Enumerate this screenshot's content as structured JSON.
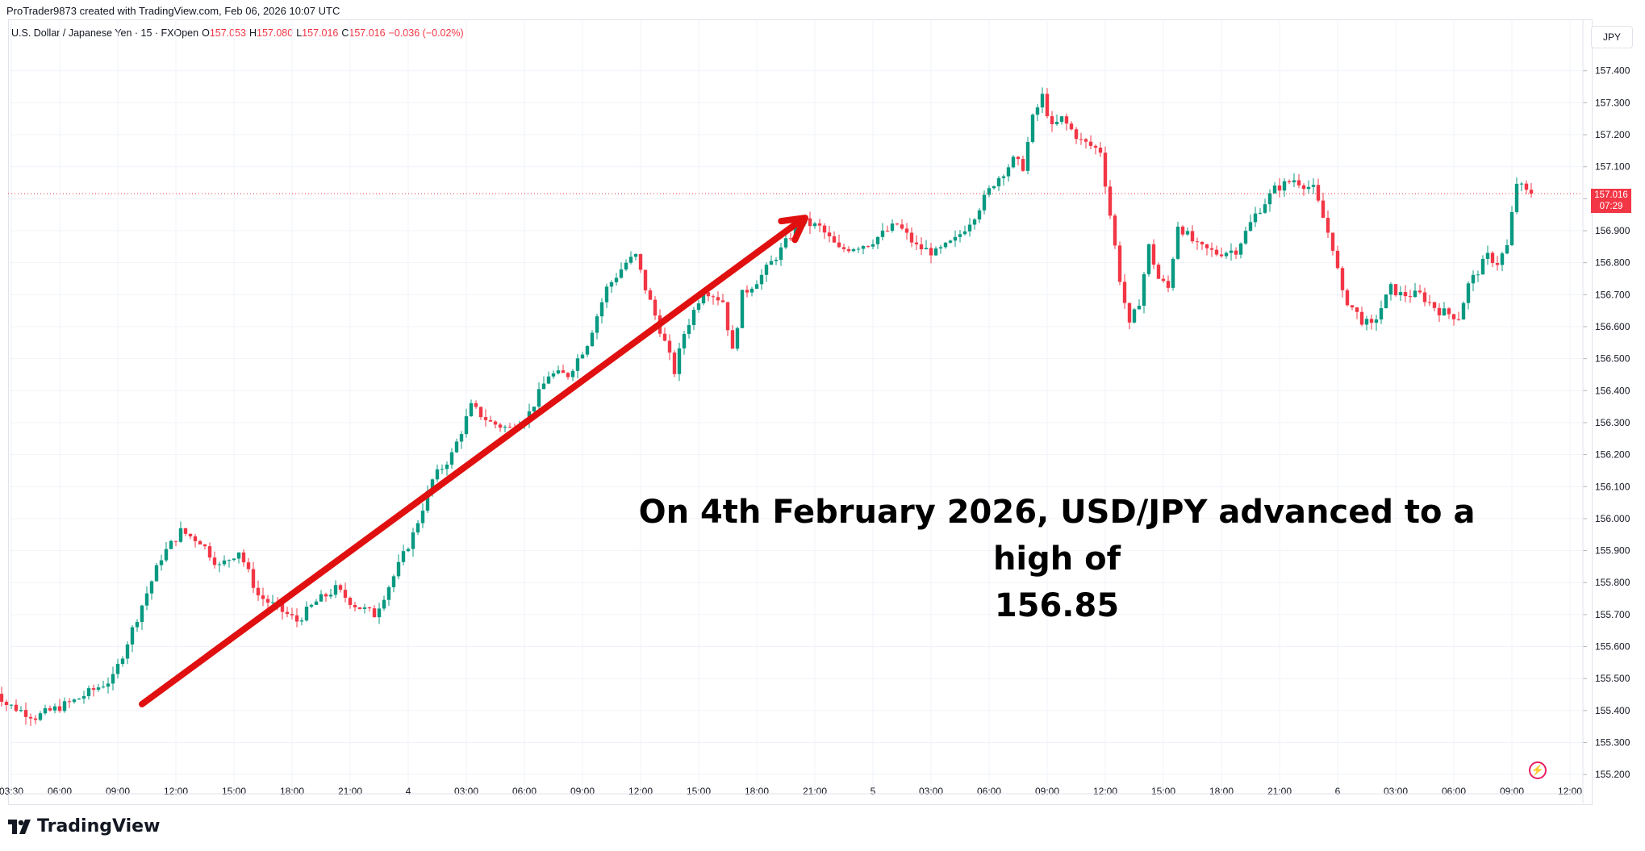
{
  "header": {
    "created_line": "ProTrader9873 created with TradingView.com, Feb 06, 2026 10:07 UTC"
  },
  "symbol_bar": {
    "title": "U.S. Dollar / Japanese Yen · 15 · FXOpen",
    "o_label": "O",
    "o_value": "157.053",
    "h_label": "H",
    "h_value": "157.080",
    "l_label": "L",
    "l_value": "157.016",
    "c_label": "C",
    "c_value": "157.016",
    "change": "−0.036 (−0.02%)"
  },
  "price_axis": {
    "currency": "JPY",
    "last_price": "157.016",
    "countdown": "07:29"
  },
  "annotation": {
    "line1": "On 4th February 2026, USD/JPY advanced to a high of",
    "line2": "156.85"
  },
  "branding": {
    "logo_text": "TradingView"
  },
  "colors": {
    "up": "#089981",
    "down": "#f23645",
    "arrow": "#e01010",
    "grid": "#f0f3fa",
    "axis_text": "#131722"
  },
  "chart_data": {
    "type": "candlestick",
    "symbol": "U.S. Dollar / Japanese Yen",
    "interval": "15",
    "ylim": [
      155.15,
      157.48
    ],
    "y_ticks": [
      "155.200",
      "155.300",
      "155.400",
      "155.500",
      "155.600",
      "155.700",
      "155.800",
      "155.900",
      "156.000",
      "156.100",
      "156.200",
      "156.300",
      "156.400",
      "156.500",
      "156.600",
      "156.700",
      "156.800",
      "156.900",
      "157.000",
      "157.100",
      "157.200",
      "157.300",
      "157.400"
    ],
    "x_ticks": [
      "03:30",
      "06:00",
      "09:00",
      "12:00",
      "15:00",
      "18:00",
      "21:00",
      "4",
      "03:00",
      "06:00",
      "09:00",
      "12:00",
      "15:00",
      "18:00",
      "21:00",
      "5",
      "03:00",
      "06:00",
      "09:00",
      "12:00",
      "15:00",
      "18:00",
      "21:00",
      "6",
      "03:00",
      "06:00",
      "09:00",
      "12:00"
    ],
    "last_price": 157.016,
    "trend_arrow": {
      "from": [
        "02-03 10:15",
        155.42
      ],
      "to": [
        "02-04 20:30",
        156.94
      ]
    },
    "close_path": [
      [
        "02-03 02:30",
        155.5
      ],
      [
        "02-03 03:30",
        155.42
      ],
      [
        "02-03 05:00",
        155.38
      ],
      [
        "02-03 07:00",
        155.43
      ],
      [
        "02-03 09:00",
        155.5
      ],
      [
        "02-03 10:30",
        155.73
      ],
      [
        "02-03 11:30",
        155.88
      ],
      [
        "02-03 12:30",
        155.96
      ],
      [
        "02-03 13:30",
        155.93
      ],
      [
        "02-03 14:30",
        155.85
      ],
      [
        "02-03 15:30",
        155.9
      ],
      [
        "02-03 16:30",
        155.76
      ],
      [
        "02-03 17:30",
        155.72
      ],
      [
        "02-03 18:30",
        155.68
      ],
      [
        "02-03 19:30",
        155.74
      ],
      [
        "02-03 20:30",
        155.78
      ],
      [
        "02-03 21:30",
        155.73
      ],
      [
        "02-03 22:30",
        155.7
      ],
      [
        "02-03 23:30",
        155.82
      ],
      [
        "02-04 00:30",
        155.95
      ],
      [
        "02-04 01:30",
        156.12
      ],
      [
        "02-04 02:30",
        156.2
      ],
      [
        "02-04 03:30",
        156.35
      ],
      [
        "02-04 04:30",
        156.3
      ],
      [
        "02-04 05:30",
        156.28
      ],
      [
        "02-04 06:30",
        156.33
      ],
      [
        "02-04 07:30",
        156.45
      ],
      [
        "02-04 08:30",
        156.45
      ],
      [
        "02-04 09:30",
        156.55
      ],
      [
        "02-04 10:30",
        156.72
      ],
      [
        "02-04 11:30",
        156.8
      ],
      [
        "02-04 12:00",
        156.82
      ],
      [
        "02-04 12:30",
        156.72
      ],
      [
        "02-04 13:30",
        156.55
      ],
      [
        "02-04 14:00",
        156.46
      ],
      [
        "02-04 14:30",
        156.58
      ],
      [
        "02-04 15:30",
        156.72
      ],
      [
        "02-04 16:30",
        156.68
      ],
      [
        "02-04 17:00",
        156.52
      ],
      [
        "02-04 17:30",
        156.7
      ],
      [
        "02-04 18:30",
        156.76
      ],
      [
        "02-04 19:30",
        156.84
      ],
      [
        "02-04 20:30",
        156.93
      ],
      [
        "02-04 21:30",
        156.91
      ],
      [
        "02-04 22:30",
        156.84
      ],
      [
        "02-05 00:00",
        156.86
      ],
      [
        "02-05 01:30",
        156.92
      ],
      [
        "02-05 02:30",
        156.85
      ],
      [
        "02-05 03:30",
        156.83
      ],
      [
        "02-05 04:30",
        156.87
      ],
      [
        "02-05 05:30",
        156.95
      ],
      [
        "02-05 06:30",
        157.05
      ],
      [
        "02-05 07:30",
        157.12
      ],
      [
        "02-05 08:00",
        157.1
      ],
      [
        "02-05 08:30",
        157.25
      ],
      [
        "02-05 09:00",
        157.32
      ],
      [
        "02-05 09:30",
        157.22
      ],
      [
        "02-05 10:00",
        157.25
      ],
      [
        "02-05 11:00",
        157.18
      ],
      [
        "02-05 12:00",
        157.15
      ],
      [
        "02-05 12:30",
        156.95
      ],
      [
        "02-05 13:00",
        156.75
      ],
      [
        "02-05 13:30",
        156.6
      ],
      [
        "02-05 14:00",
        156.68
      ],
      [
        "02-05 14:30",
        156.85
      ],
      [
        "02-05 15:00",
        156.75
      ],
      [
        "02-05 15:30",
        156.72
      ],
      [
        "02-05 16:00",
        156.92
      ],
      [
        "02-05 17:00",
        156.85
      ],
      [
        "02-05 18:00",
        156.83
      ],
      [
        "02-05 19:00",
        156.84
      ],
      [
        "02-05 20:00",
        156.95
      ],
      [
        "02-05 21:00",
        157.03
      ],
      [
        "02-05 22:00",
        157.06
      ],
      [
        "02-05 23:00",
        157.03
      ],
      [
        "02-06 00:00",
        156.85
      ],
      [
        "02-06 00:30",
        156.7
      ],
      [
        "02-06 01:30",
        156.62
      ],
      [
        "02-06 02:00",
        156.6
      ],
      [
        "02-06 03:00",
        156.72
      ],
      [
        "02-06 03:30",
        156.7
      ],
      [
        "02-06 04:30",
        156.7
      ],
      [
        "02-06 05:30",
        156.65
      ],
      [
        "02-06 06:30",
        156.63
      ],
      [
        "02-06 07:00",
        156.73
      ],
      [
        "02-06 08:00",
        156.82
      ],
      [
        "02-06 08:30",
        156.8
      ],
      [
        "02-06 09:00",
        156.85
      ],
      [
        "02-06 09:30",
        157.05
      ],
      [
        "02-06 10:00",
        157.02
      ]
    ]
  }
}
